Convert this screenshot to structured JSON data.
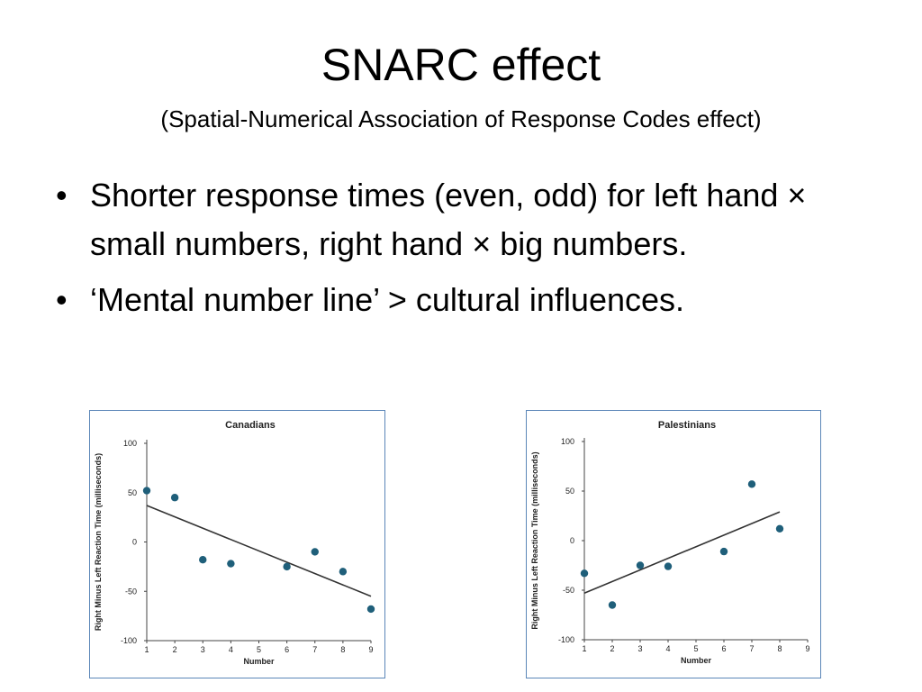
{
  "slide": {
    "title": "SNARC effect",
    "subtitle": "(Spatial-Numerical Association of Response Codes effect)",
    "bullets": [
      "Shorter response times (even, odd) for left hand × small numbers, right hand × big numbers.",
      "‘Mental number line’ > cultural influences."
    ],
    "bullet_glyph": "•"
  },
  "chart_data": [
    {
      "type": "scatter",
      "title": "Canadians",
      "xlabel": "Number",
      "ylabel": "Right Minus Left Reaction Time (milliseconds)",
      "xlim": [
        1,
        9
      ],
      "ylim": [
        -100,
        100
      ],
      "x_ticks": [
        1,
        2,
        3,
        4,
        5,
        6,
        7,
        8,
        9
      ],
      "y_ticks": [
        -100,
        -50,
        0,
        50,
        100
      ],
      "points": [
        {
          "x": 1,
          "y": 52
        },
        {
          "x": 2,
          "y": 45
        },
        {
          "x": 3,
          "y": -18
        },
        {
          "x": 4,
          "y": -22
        },
        {
          "x": 6,
          "y": -25
        },
        {
          "x": 7,
          "y": -10
        },
        {
          "x": 8,
          "y": -30
        },
        {
          "x": 9,
          "y": -68
        }
      ],
      "trend_line": {
        "x": [
          1,
          9
        ],
        "y": [
          37,
          -55
        ]
      },
      "point_color": "#1f5f7a",
      "line_color": "#333333"
    },
    {
      "type": "scatter",
      "title": "Palestinians",
      "xlabel": "Number",
      "ylabel": "Right Minus Left Reaction Time (milliseconds)",
      "xlim": [
        1,
        9
      ],
      "ylim": [
        -100,
        100
      ],
      "x_ticks": [
        1,
        2,
        3,
        4,
        5,
        6,
        7,
        8,
        9
      ],
      "y_ticks": [
        -100,
        -50,
        0,
        50,
        100
      ],
      "points": [
        {
          "x": 1,
          "y": -33
        },
        {
          "x": 2,
          "y": -65
        },
        {
          "x": 3,
          "y": -25
        },
        {
          "x": 4,
          "y": -26
        },
        {
          "x": 6,
          "y": -11
        },
        {
          "x": 7,
          "y": 57
        },
        {
          "x": 8,
          "y": 12
        }
      ],
      "trend_line": {
        "x": [
          1,
          8
        ],
        "y": [
          -53,
          29
        ]
      },
      "point_color": "#1f5f7a",
      "line_color": "#333333"
    }
  ]
}
